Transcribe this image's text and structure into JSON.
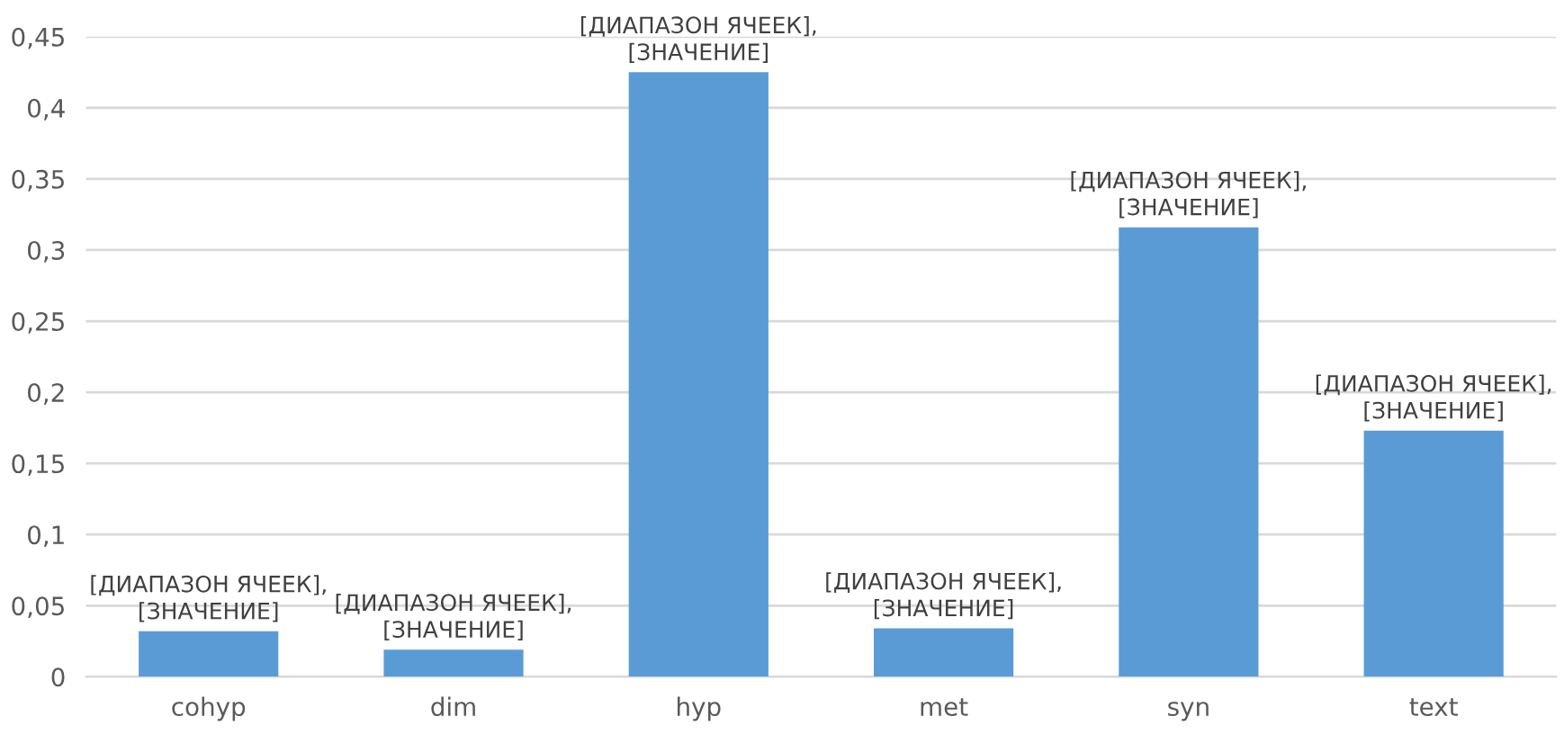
{
  "chart_data": {
    "type": "bar",
    "categories": [
      "cohyp",
      "dim",
      "hyp",
      "met",
      "syn",
      "text"
    ],
    "values": [
      0.032,
      0.019,
      0.425,
      0.034,
      0.316,
      0.173
    ],
    "color": "#5b9bd5",
    "value_labels": [
      "[ДИАПАЗОН ЯЧЕЕК],\n[ЗНАЧЕНИЕ]",
      "[ДИАПАЗОН ЯЧЕЕК],\n[ЗНАЧЕНИЕ]",
      "[ДИАПАЗОН ЯЧЕЕК],\n[ЗНАЧЕНИЕ]",
      "[ДИАПАЗОН ЯЧЕЕК],\n[ЗНАЧЕНИЕ]",
      "[ДИАПАЗОН ЯЧЕЕК],\n[ЗНАЧЕНИЕ]",
      "[ДИАПАЗОН ЯЧЕЕК],\n[ЗНАЧЕНИЕ]"
    ],
    "ylim": [
      0,
      0.45
    ],
    "yticks": [
      {
        "value": 0,
        "label": "0"
      },
      {
        "value": 0.05,
        "label": "0,05"
      },
      {
        "value": 0.1,
        "label": "0,1"
      },
      {
        "value": 0.15,
        "label": "0,15"
      },
      {
        "value": 0.2,
        "label": "0,2"
      },
      {
        "value": 0.25,
        "label": "0,25"
      },
      {
        "value": 0.3,
        "label": "0,3"
      },
      {
        "value": 0.35,
        "label": "0,35"
      },
      {
        "value": 0.4,
        "label": "0,4"
      },
      {
        "value": 0.45,
        "label": "0,45"
      }
    ],
    "grid": "y",
    "legend": false
  }
}
